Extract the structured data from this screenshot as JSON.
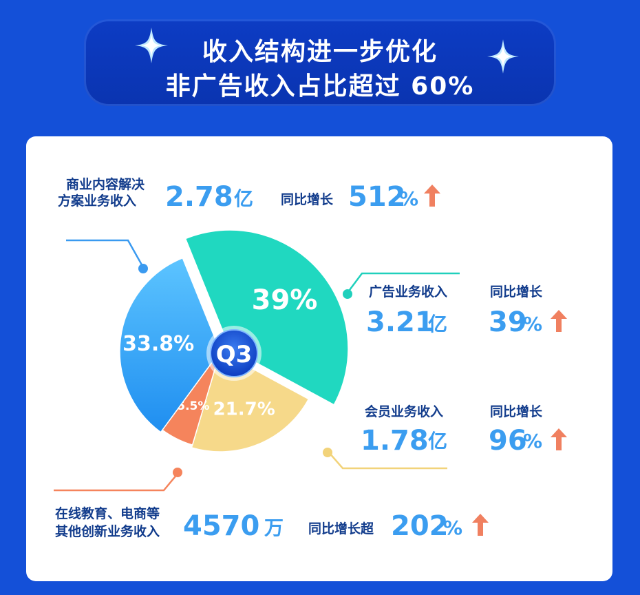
{
  "banner": {
    "line1": "收入结构进一步优化",
    "line2": "非广告收入占比超过 60%"
  },
  "colors": {
    "background": "#1450d8",
    "accent_blue": "#3b9df0",
    "label_navy": "#123c8c",
    "arrow_orange": "#f08060",
    "teal": "#20d8c0",
    "yellow": "#f6d98a",
    "orange": "#f5845c",
    "blue": "#3aa4f4"
  },
  "chart_data": {
    "type": "pie",
    "center_label": "Q3",
    "slices": [
      {
        "label": "39%",
        "value": 39,
        "color": "#20d8c0"
      },
      {
        "label": "21.7%",
        "value": 21.7,
        "color": "#f6d98a"
      },
      {
        "label": "5.5%",
        "value": 5.5,
        "color": "#f5845c"
      },
      {
        "label": "33.8%",
        "value": 33.8,
        "color": "#3aa4f4"
      }
    ]
  },
  "segments": {
    "solutions": {
      "name_line1": "商业内容解决",
      "name_line2": "方案业务收入",
      "value": "2.78",
      "unit": "亿",
      "growth_label": "同比增长",
      "growth": "512",
      "growth_unit": "%"
    },
    "ads": {
      "name": "广告业务收入",
      "value": "3.21",
      "unit": "亿",
      "growth_label": "同比增长",
      "growth": "39",
      "growth_unit": "%"
    },
    "members": {
      "name": "会员业务收入",
      "value": "1.78",
      "unit": "亿",
      "growth_label": "同比增长",
      "growth": "96",
      "growth_unit": "%"
    },
    "other": {
      "name_line1": "在线教育、电商等",
      "name_line2": "其他创新业务收入",
      "value": "4570",
      "unit": "万",
      "growth_label": "同比增长超",
      "growth": "202",
      "growth_unit": "%"
    }
  }
}
